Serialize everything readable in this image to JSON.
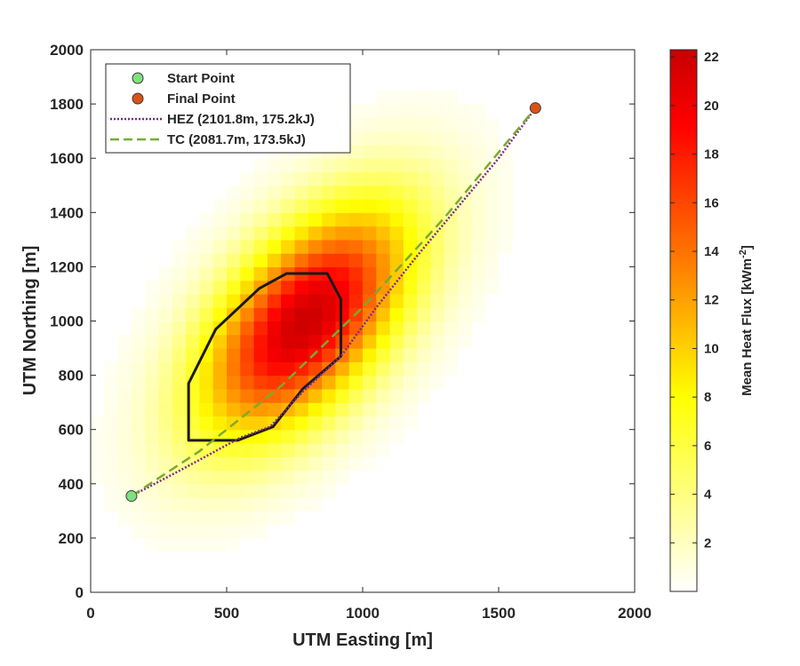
{
  "chart_data": {
    "type": "heatmap",
    "xlabel": "UTM Easting [m]",
    "ylabel": "UTM Northing [m]",
    "xlim": [
      0,
      2000
    ],
    "ylim": [
      0,
      2000
    ],
    "xticks": [
      0,
      500,
      1000,
      1500,
      2000
    ],
    "yticks": [
      0,
      200,
      400,
      600,
      800,
      1000,
      1200,
      1400,
      1600,
      1800,
      2000
    ],
    "grid": false,
    "legend_position": "top-left",
    "heatmap": {
      "cell_size": 50,
      "peak_value": 22,
      "peak_location": [
        790,
        1000
      ],
      "colormap": [
        "#ffffff",
        "#ffff00",
        "#ff8000",
        "#ff0000",
        "#c80000"
      ]
    },
    "colorbar": {
      "label": "Mean Heat Flux [kWm^-2]",
      "label_main": "Mean Heat Flux [kWm",
      "label_sup": "-2",
      "label_end": "]",
      "range": [
        0,
        22.3
      ],
      "ticks": [
        2,
        4,
        6,
        8,
        10,
        12,
        14,
        16,
        18,
        20,
        22
      ]
    },
    "polygon": {
      "name": "zone-boundary",
      "color": "#1a1a1a",
      "points": [
        [
          360,
          560
        ],
        [
          360,
          770
        ],
        [
          460,
          970
        ],
        [
          620,
          1120
        ],
        [
          720,
          1175
        ],
        [
          870,
          1175
        ],
        [
          920,
          1080
        ],
        [
          920,
          870
        ],
        [
          780,
          750
        ],
        [
          670,
          610
        ],
        [
          540,
          560
        ]
      ]
    },
    "series": [
      {
        "name": "HEZ (2101.8m, 175.2kJ)",
        "style": "dotted",
        "color": "#7b2a8c",
        "points": [
          [
            150,
            355
          ],
          [
            330,
            450
          ],
          [
            550,
            570
          ],
          [
            660,
            610
          ],
          [
            780,
            740
          ],
          [
            920,
            870
          ],
          [
            1050,
            1050
          ],
          [
            1200,
            1240
          ],
          [
            1350,
            1420
          ],
          [
            1500,
            1600
          ],
          [
            1635,
            1785
          ]
        ]
      },
      {
        "name": "TC (2081.7m, 173.5kJ)",
        "style": "dashed",
        "color": "#77ac30",
        "points": [
          [
            150,
            355
          ],
          [
            400,
            520
          ],
          [
            700,
            760
          ],
          [
            1000,
            1050
          ],
          [
            1300,
            1380
          ],
          [
            1635,
            1785
          ]
        ]
      },
      {
        "name": "Start Point",
        "style": "marker",
        "color": "#7fe07f",
        "points": [
          [
            150,
            355
          ]
        ]
      },
      {
        "name": "Final Point",
        "style": "marker",
        "color": "#d95319",
        "points": [
          [
            1635,
            1785
          ]
        ]
      }
    ]
  }
}
